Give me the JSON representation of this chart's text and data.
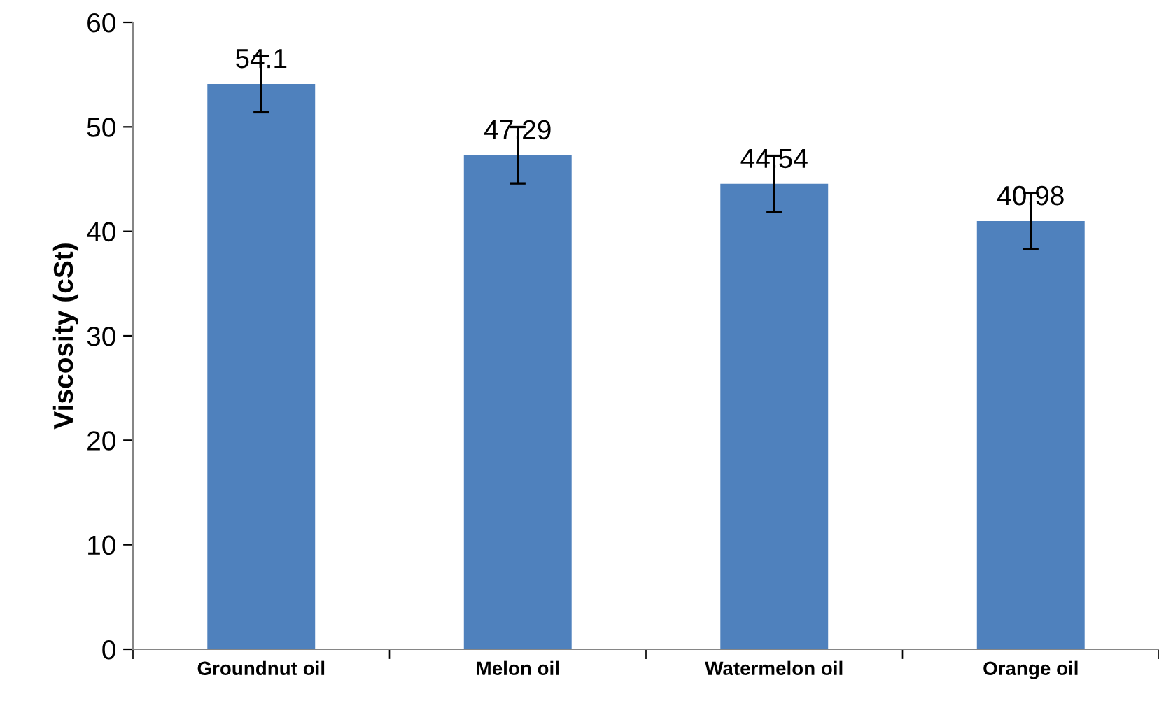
{
  "chart_data": {
    "type": "bar",
    "ylabel": "Viscosity (cSt)",
    "categories": [
      "Groundnut oil",
      "Melon oil",
      "Watermelon oil",
      "Orange oil"
    ],
    "values": [
      54.1,
      47.29,
      44.54,
      40.98
    ],
    "errors": [
      2.7,
      2.7,
      2.7,
      2.7
    ],
    "color": "#4f81bd",
    "ylim": [
      0,
      60
    ],
    "yticks": [
      0,
      10,
      20,
      30,
      40,
      50,
      60
    ],
    "data_labels": true,
    "grid": false,
    "legend": false
  }
}
